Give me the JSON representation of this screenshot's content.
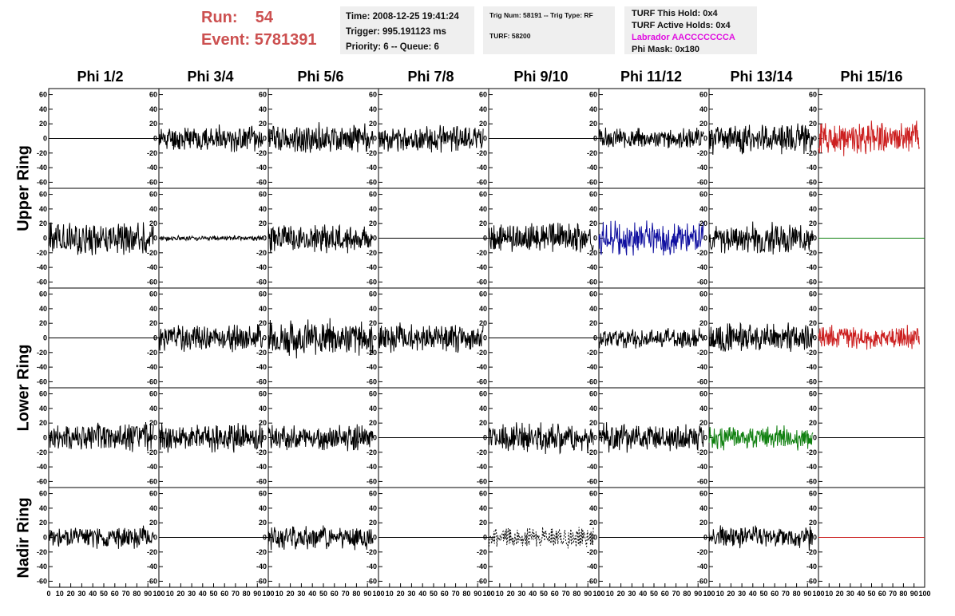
{
  "header": {
    "run_label": "Run:",
    "run_value": "54",
    "event_label": "Event:",
    "event_value": "5781391",
    "time": "Time: 2008-12-25 19:41:24",
    "trigger": "Trigger: 995.191123 ms",
    "priority": "Priority: 6 -- Queue: 6",
    "trig_num": "Trig Num: 58191 -- Trig Type: RF",
    "turf": "TURF: 58200",
    "turf_this_hold": "TURF This Hold: 0x4",
    "turf_active_holds": "TURF Active Holds: 0x4",
    "labrador": "Labrador AACCCCCCCA",
    "phi_mask": "Phi Mask: 0x180",
    "labrador_color": "#e010e0",
    "run_color": "#cc5050"
  },
  "columns": [
    "Phi 1/2",
    "Phi 3/4",
    "Phi 5/6",
    "Phi 7/8",
    "Phi 9/10",
    "Phi 11/12",
    "Phi 13/14",
    "Phi 15/16"
  ],
  "ring_labels": [
    {
      "text": "Upper Ring"
    },
    {
      "text": "Lower Ring"
    },
    {
      "text": "Nadir Ring"
    }
  ],
  "chart_data": {
    "type": "line",
    "y_ticks": [
      60,
      40,
      20,
      0,
      -20,
      -40,
      -60
    ],
    "ylim": [
      -65,
      65
    ],
    "x_ticks": [
      "0",
      "10",
      "20",
      "30",
      "40",
      "50",
      "60",
      "70",
      "80",
      "90",
      "100"
    ],
    "xlim": [
      0,
      100
    ],
    "grid": false,
    "series_colors": {
      "black": "#000000",
      "red": "#cc2020",
      "blue": "#1010a0",
      "green": "#108010"
    },
    "panels": [
      [
        {
          "flat": true,
          "color": "black"
        },
        {
          "amp": 15,
          "color": "black",
          "seed": 11
        },
        {
          "amp": 18,
          "color": "black",
          "seed": 12
        },
        {
          "amp": 15,
          "color": "black",
          "seed": 13
        },
        {
          "flat": true,
          "color": "black"
        },
        {
          "amp": 12,
          "color": "black",
          "seed": 14
        },
        {
          "amp": 18,
          "color": "black",
          "seed": 15
        },
        {
          "amp": 20,
          "color": "red",
          "seed": 16
        }
      ],
      [
        {
          "amp": 20,
          "color": "black",
          "seed": 21
        },
        {
          "amp": 3,
          "color": "black",
          "seed": 22
        },
        {
          "amp": 18,
          "color": "black",
          "seed": 23
        },
        {
          "flat": true,
          "color": "black"
        },
        {
          "amp": 18,
          "color": "black",
          "seed": 24
        },
        {
          "amp": 20,
          "color": "blue",
          "seed": 25
        },
        {
          "amp": 18,
          "color": "black",
          "seed": 26
        },
        {
          "flat": true,
          "color": "green"
        }
      ],
      [
        {
          "flat": true,
          "color": "black"
        },
        {
          "amp": 16,
          "color": "black",
          "seed": 31
        },
        {
          "amp": 22,
          "color": "black",
          "seed": 32
        },
        {
          "amp": 17,
          "color": "black",
          "seed": 33
        },
        {
          "flat": true,
          "color": "black"
        },
        {
          "amp": 12,
          "color": "black",
          "seed": 34
        },
        {
          "amp": 18,
          "color": "black",
          "seed": 35
        },
        {
          "amp": 14,
          "color": "red",
          "seed": 36
        }
      ],
      [
        {
          "amp": 18,
          "color": "black",
          "seed": 41
        },
        {
          "amp": 17,
          "color": "black",
          "seed": 42
        },
        {
          "amp": 15,
          "color": "black",
          "seed": 43
        },
        {
          "flat": true,
          "color": "black"
        },
        {
          "amp": 18,
          "color": "black",
          "seed": 44
        },
        {
          "amp": 17,
          "color": "black",
          "seed": 45
        },
        {
          "amp": 14,
          "color": "green",
          "seed": 46
        },
        {
          "flat": true,
          "color": "black"
        }
      ],
      [
        {
          "amp": 13,
          "color": "black",
          "seed": 51
        },
        {
          "flat": true,
          "color": "black"
        },
        {
          "amp": 15,
          "color": "black",
          "seed": 52
        },
        {
          "flat": true,
          "color": "black"
        },
        {
          "amp": 12,
          "color": "black",
          "seed": 53,
          "dashed": true
        },
        {
          "flat": true,
          "color": "black"
        },
        {
          "amp": 14,
          "color": "black",
          "seed": 54
        },
        {
          "flat": true,
          "color": "red"
        }
      ]
    ]
  }
}
